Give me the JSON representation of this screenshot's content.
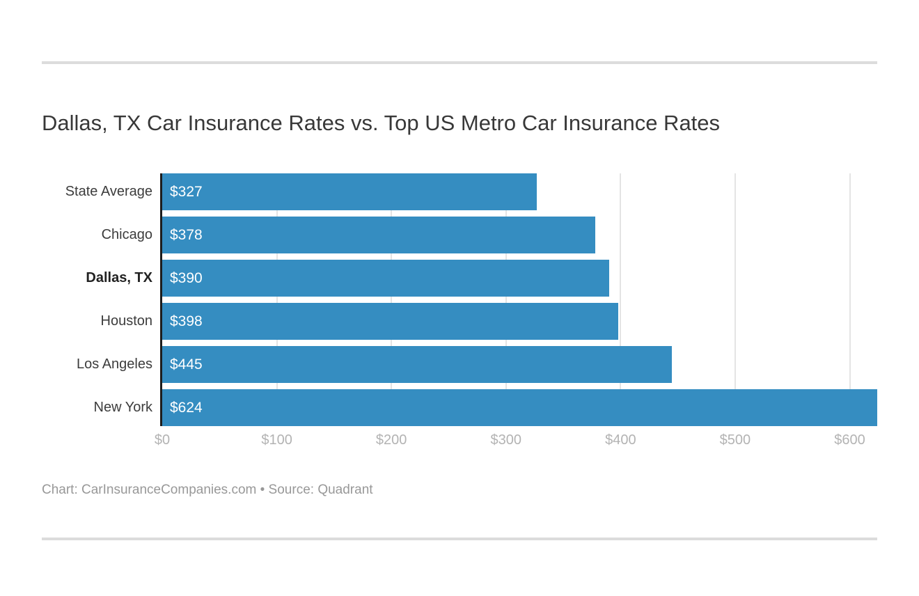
{
  "title": "Dallas, TX Car Insurance Rates vs. Top US Metro Car Insurance Rates",
  "footer": "Chart: CarInsuranceCompanies.com • Source: Quadrant",
  "chart_data": {
    "type": "bar",
    "orientation": "horizontal",
    "title": "Dallas, TX Car Insurance Rates vs. Top US Metro Car Insurance Rates",
    "categories": [
      "State Average",
      "Chicago",
      "Dallas, TX",
      "Houston",
      "Los Angeles",
      "New York"
    ],
    "values": [
      327,
      378,
      390,
      398,
      445,
      624
    ],
    "value_labels": [
      "$327",
      "$378",
      "$390",
      "$398",
      "$445",
      "$624"
    ],
    "bold_category": "Dallas, TX",
    "xlim": [
      0,
      624
    ],
    "x_ticks": [
      {
        "value": 0,
        "label": "$0"
      },
      {
        "value": 100,
        "label": "$100"
      },
      {
        "value": 200,
        "label": "$200"
      },
      {
        "value": 300,
        "label": "$300"
      },
      {
        "value": 400,
        "label": "$400"
      },
      {
        "value": 500,
        "label": "$500"
      },
      {
        "value": 600,
        "label": "$600"
      }
    ],
    "grid": true,
    "legend": "none"
  },
  "colors": {
    "bar": "#358dc1",
    "axis_line": "#1d1d1d",
    "gridline": "#e4e4e4",
    "title_text": "#383838",
    "category_label": "#3c3c3c",
    "value_label": "#ffffff",
    "tick_label": "#b3b3b3",
    "footer_text": "#989898",
    "separator": "#dcdcdc",
    "background": "#ffffff"
  }
}
